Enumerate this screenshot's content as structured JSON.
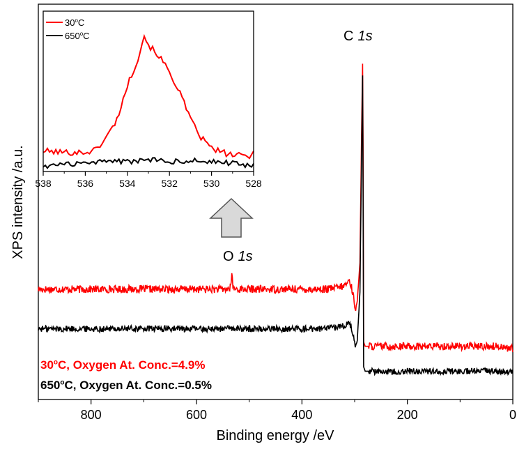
{
  "colors": {
    "red": "#ff0000",
    "black": "#000000",
    "arrow_fill": "#d9d9d9",
    "arrow_stroke": "#555555"
  },
  "chart_data": [
    {
      "type": "line",
      "title": "",
      "xlabel": "Binding energy /eV",
      "ylabel": "XPS intensity /a.u.",
      "xlim": [
        900,
        0
      ],
      "x_reversed": true,
      "x_ticks": [
        800,
        600,
        400,
        200,
        0
      ],
      "x_tick_labels": [
        "800",
        "600",
        "400",
        "200",
        "0"
      ],
      "y_tick_labels_shown": false,
      "grid": false,
      "annotations": {
        "c1s_elem": "C",
        "c1s_orb": "1s",
        "o1s_elem": "O",
        "o1s_orb": "1s"
      },
      "notes": [
        {
          "temp": "30",
          "deg": "o",
          "rest": "C,  Oxygen At. Conc.=4.9%",
          "color": "#ff0000"
        },
        {
          "temp": "650",
          "deg": "o",
          "rest": "C, Oxygen At. Conc.=0.5%",
          "color": "#000000"
        }
      ],
      "series": [
        {
          "color": "#ff0000",
          "points": [
            [
              900,
              21
            ],
            [
              800,
              21
            ],
            [
              700,
              21
            ],
            [
              600,
              21
            ],
            [
              540,
              21
            ],
            [
              535,
              21.5
            ],
            [
              533,
              27
            ],
            [
              531,
              21.5
            ],
            [
              525,
              21
            ],
            [
              450,
              21
            ],
            [
              400,
              21
            ],
            [
              350,
              21
            ],
            [
              320,
              22
            ],
            [
              310,
              24
            ],
            [
              305,
              21
            ],
            [
              298,
              14
            ],
            [
              295,
              17
            ],
            [
              290,
              30
            ],
            [
              287,
              72
            ],
            [
              285,
              98
            ],
            [
              284,
              70
            ],
            [
              283,
              3
            ],
            [
              280,
              1.5
            ],
            [
              200,
              1.5
            ],
            [
              100,
              1.5
            ],
            [
              20,
              1.5
            ],
            [
              10,
              0.8
            ],
            [
              0,
              0.8
            ]
          ],
          "noise": 1.3
        },
        {
          "color": "#000000",
          "points": [
            [
              900,
              7.5
            ],
            [
              800,
              7.5
            ],
            [
              700,
              7.5
            ],
            [
              600,
              7.5
            ],
            [
              500,
              7.5
            ],
            [
              400,
              7.5
            ],
            [
              350,
              7.5
            ],
            [
              320,
              8.5
            ],
            [
              310,
              10
            ],
            [
              305,
              7
            ],
            [
              298,
              1
            ],
            [
              295,
              3.5
            ],
            [
              290,
              20
            ],
            [
              287,
              65
            ],
            [
              285,
              94
            ],
            [
              284,
              55
            ],
            [
              283,
              -5.5
            ],
            [
              280,
              -7
            ],
            [
              200,
              -7
            ],
            [
              100,
              -7
            ],
            [
              20,
              -7
            ],
            [
              10,
              -7.5
            ],
            [
              0,
              -7.5
            ]
          ],
          "noise": 1.1
        }
      ]
    },
    {
      "type": "line",
      "title": "",
      "inset": true,
      "xlim": [
        538,
        528
      ],
      "x_reversed": true,
      "x_ticks": [
        538,
        536,
        534,
        532,
        530,
        528
      ],
      "x_tick_labels": [
        "538",
        "536",
        "534",
        "532",
        "530",
        "528"
      ],
      "legend_position": "top-left",
      "series": [
        {
          "name_temp": "30",
          "name_deg": "o",
          "name_unit": "C",
          "color": "#ff0000",
          "points": [
            [
              538,
              12
            ],
            [
              537,
              11
            ],
            [
              536,
              11
            ],
            [
              535.5,
              13
            ],
            [
              535,
              22
            ],
            [
              534.5,
              35
            ],
            [
              534,
              60
            ],
            [
              533.5,
              80
            ],
            [
              533.2,
              97
            ],
            [
              533,
              90
            ],
            [
              532.5,
              82
            ],
            [
              532,
              70
            ],
            [
              531.5,
              55
            ],
            [
              531,
              35
            ],
            [
              530.5,
              22
            ],
            [
              530,
              14
            ],
            [
              529.5,
              11
            ],
            [
              529,
              9
            ],
            [
              528,
              8
            ]
          ],
          "noise": 2.2
        },
        {
          "name_temp": "650",
          "name_deg": "o",
          "name_unit": "C",
          "color": "#000000",
          "points": [
            [
              538,
              1
            ],
            [
              537,
              2
            ],
            [
              536,
              3
            ],
            [
              535,
              5
            ],
            [
              534,
              4
            ],
            [
              533,
              6
            ],
            [
              532,
              4
            ],
            [
              531,
              5
            ],
            [
              530,
              4
            ],
            [
              529,
              3
            ],
            [
              528,
              1
            ]
          ],
          "noise": 1.8
        }
      ]
    }
  ]
}
